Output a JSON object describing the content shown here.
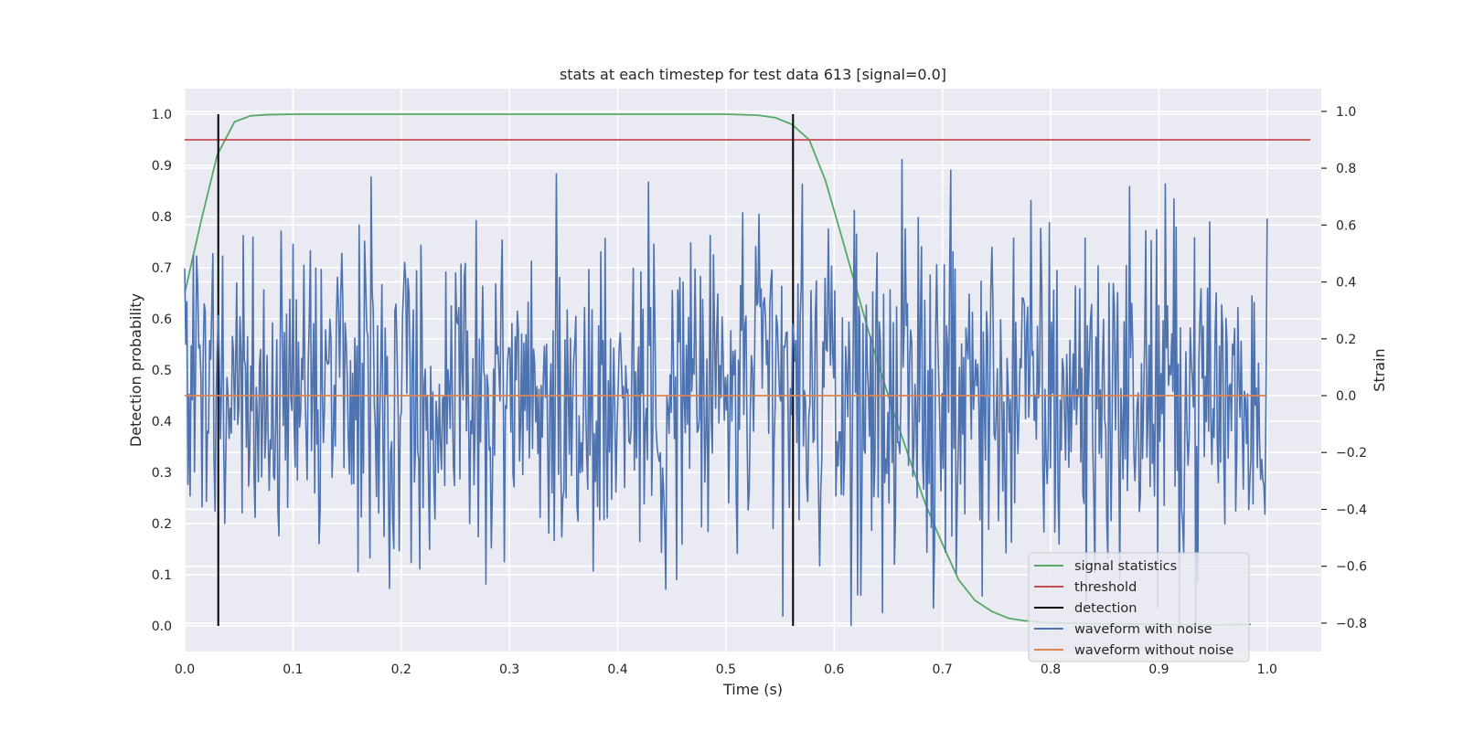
{
  "chart_data": {
    "type": "line",
    "title": "stats at each timestep for test data 613 [signal=0.0]",
    "xlabel": "Time (s)",
    "ylabel": "Detection probability",
    "y2label": "Strain",
    "xlim": [
      0.0,
      1.05
    ],
    "ylim": [
      -0.05,
      1.05
    ],
    "y2lim": [
      -0.9,
      1.08
    ],
    "xticks": [
      "0.0",
      "0.1",
      "0.2",
      "0.3",
      "0.4",
      "0.5",
      "0.6",
      "0.7",
      "0.8",
      "0.9",
      "1.0"
    ],
    "yticks": [
      "0.0",
      "0.1",
      "0.2",
      "0.3",
      "0.4",
      "0.5",
      "0.6",
      "0.7",
      "0.8",
      "0.9",
      "1.0"
    ],
    "y2ticks": [
      "−0.8",
      "−0.6",
      "−0.4",
      "−0.2",
      "0.0",
      "0.2",
      "0.4",
      "0.6",
      "0.8",
      "1.0"
    ],
    "grid": true,
    "background": "#eaeaf2",
    "legend_position": "lower-right",
    "series": [
      {
        "name": "signal statistics",
        "axis": "left",
        "color": "#55a868",
        "x": [
          0.0,
          0.015,
          0.03,
          0.046,
          0.061,
          0.076,
          0.1,
          0.2,
          0.3,
          0.4,
          0.5,
          0.53,
          0.546,
          0.561,
          0.577,
          0.592,
          0.607,
          0.623,
          0.638,
          0.653,
          0.669,
          0.684,
          0.7,
          0.715,
          0.73,
          0.746,
          0.761,
          0.776,
          0.8,
          0.85,
          0.9,
          0.95,
          0.985
        ],
        "y": [
          0.65,
          0.79,
          0.92,
          0.985,
          0.997,
          0.999,
          1.0,
          1.0,
          1.0,
          1.0,
          1.0,
          0.998,
          0.993,
          0.98,
          0.95,
          0.87,
          0.76,
          0.64,
          0.53,
          0.43,
          0.33,
          0.24,
          0.16,
          0.09,
          0.05,
          0.028,
          0.015,
          0.01,
          0.006,
          0.004,
          0.003,
          0.002,
          0.003
        ]
      },
      {
        "name": "threshold",
        "axis": "left",
        "color": "#c44e52",
        "x": [
          0.0,
          1.04
        ],
        "y": [
          0.95,
          0.95
        ]
      },
      {
        "name": "detection",
        "axis": "left",
        "color": "#000000",
        "type": "vlines",
        "x": [
          0.031,
          0.562
        ],
        "ymin": 0.0,
        "ymax": 1.0
      },
      {
        "name": "waveform with noise",
        "axis": "right",
        "color": "#4c72b0",
        "x_range": [
          0.0,
          1.0
        ],
        "n_points": 1000,
        "approx_range": [
          -0.82,
          1.0
        ],
        "values": []
      },
      {
        "name": "waveform without noise",
        "axis": "right",
        "color": "#dd8452",
        "x": [
          0.0,
          1.0
        ],
        "y": [
          0.0,
          0.0
        ]
      }
    ]
  }
}
